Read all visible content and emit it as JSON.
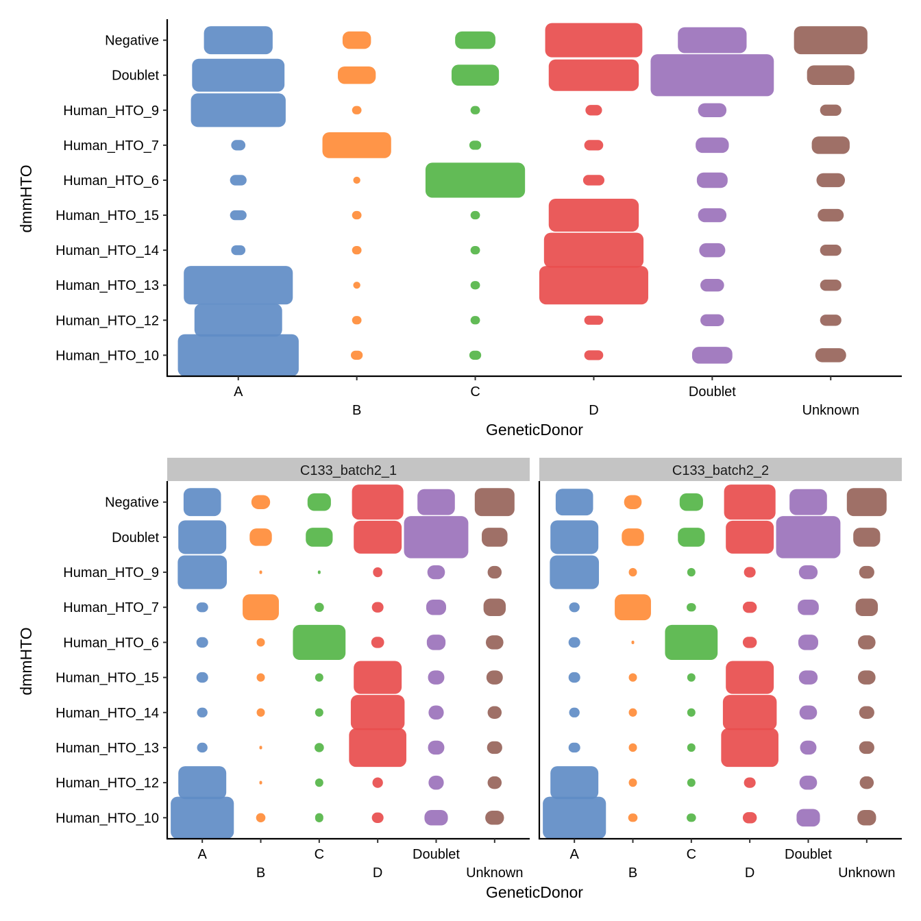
{
  "chart_data": [
    {
      "type": "scatter",
      "subtype": "jitter",
      "xlabel": "GeneticDonor",
      "ylabel": "dmmHTO",
      "x_categories": [
        "A",
        "B",
        "C",
        "D",
        "Doublet",
        "Unknown"
      ],
      "y_categories": [
        "Human_HTO_10",
        "Human_HTO_12",
        "Human_HTO_13",
        "Human_HTO_14",
        "Human_HTO_15",
        "Human_HTO_6",
        "Human_HTO_7",
        "Human_HTO_9",
        "Doublet",
        "Negative"
      ],
      "colors": {
        "A": "#5f8cc6",
        "B": "#ff8c38",
        "C": "#55b548",
        "D": "#e84d4d",
        "Doublet": "#9b72bb",
        "Unknown": "#97645a"
      },
      "note_spread": "cells: [x-spread, y-spread] of jittered point cloud per row (y_categories order) and column (x_categories order), in category units",
      "cells": [
        [
          [
            0.51,
            0.6
          ],
          [
            0.05,
            0.13
          ],
          [
            0.05,
            0.13
          ],
          [
            0.08,
            0.14
          ],
          [
            0.17,
            0.24
          ],
          [
            0.13,
            0.2
          ]
        ],
        [
          [
            0.37,
            0.47
          ],
          [
            0.04,
            0.12
          ],
          [
            0.04,
            0.12
          ],
          [
            0.08,
            0.13
          ],
          [
            0.1,
            0.17
          ],
          [
            0.09,
            0.16
          ]
        ],
        [
          [
            0.46,
            0.55
          ],
          [
            0.03,
            0.1
          ],
          [
            0.04,
            0.12
          ],
          [
            0.46,
            0.55
          ],
          [
            0.1,
            0.18
          ],
          [
            0.09,
            0.16
          ]
        ],
        [
          [
            0.06,
            0.14
          ],
          [
            0.04,
            0.12
          ],
          [
            0.04,
            0.12
          ],
          [
            0.42,
            0.5
          ],
          [
            0.11,
            0.2
          ],
          [
            0.09,
            0.16
          ]
        ],
        [
          [
            0.07,
            0.14
          ],
          [
            0.04,
            0.12
          ],
          [
            0.04,
            0.12
          ],
          [
            0.38,
            0.47
          ],
          [
            0.12,
            0.2
          ],
          [
            0.11,
            0.18
          ]
        ],
        [
          [
            0.07,
            0.15
          ],
          [
            0.03,
            0.1
          ],
          [
            0.42,
            0.5
          ],
          [
            0.09,
            0.15
          ],
          [
            0.13,
            0.22
          ],
          [
            0.12,
            0.2
          ]
        ],
        [
          [
            0.06,
            0.15
          ],
          [
            0.29,
            0.37
          ],
          [
            0.05,
            0.13
          ],
          [
            0.08,
            0.15
          ],
          [
            0.14,
            0.22
          ],
          [
            0.16,
            0.25
          ]
        ],
        [
          [
            0.4,
            0.48
          ],
          [
            0.04,
            0.12
          ],
          [
            0.04,
            0.12
          ],
          [
            0.07,
            0.15
          ],
          [
            0.12,
            0.2
          ],
          [
            0.09,
            0.16
          ]
        ],
        [
          [
            0.39,
            0.47
          ],
          [
            0.16,
            0.25
          ],
          [
            0.2,
            0.3
          ],
          [
            0.38,
            0.45
          ],
          [
            0.52,
            0.6
          ],
          [
            0.2,
            0.28
          ]
        ],
        [
          [
            0.29,
            0.4
          ],
          [
            0.12,
            0.25
          ],
          [
            0.17,
            0.25
          ],
          [
            0.41,
            0.49
          ],
          [
            0.29,
            0.37
          ],
          [
            0.31,
            0.4
          ]
        ]
      ]
    },
    {
      "type": "scatter",
      "subtype": "jitter-faceted",
      "xlabel": "GeneticDonor",
      "ylabel": "dmmHTO",
      "x_categories": [
        "A",
        "B",
        "C",
        "D",
        "Doublet",
        "Unknown"
      ],
      "y_categories": [
        "Human_HTO_10",
        "Human_HTO_12",
        "Human_HTO_13",
        "Human_HTO_14",
        "Human_HTO_15",
        "Human_HTO_6",
        "Human_HTO_7",
        "Human_HTO_9",
        "Doublet",
        "Negative"
      ],
      "facets": [
        {
          "label": "C133_batch2_1",
          "cells": [
            [
              [
                0.54,
                0.6
              ],
              [
                0.08,
                0.13
              ],
              [
                0.07,
                0.13
              ],
              [
                0.1,
                0.15
              ],
              [
                0.2,
                0.22
              ],
              [
                0.16,
                0.2
              ]
            ],
            [
              [
                0.41,
                0.47
              ],
              [
                0.02,
                0.05
              ],
              [
                0.07,
                0.12
              ],
              [
                0.09,
                0.15
              ],
              [
                0.13,
                0.2
              ],
              [
                0.12,
                0.18
              ]
            ],
            [
              [
                0.09,
                0.14
              ],
              [
                0.02,
                0.05
              ],
              [
                0.08,
                0.13
              ],
              [
                0.49,
                0.55
              ],
              [
                0.14,
                0.2
              ],
              [
                0.13,
                0.18
              ]
            ],
            [
              [
                0.09,
                0.14
              ],
              [
                0.07,
                0.12
              ],
              [
                0.07,
                0.12
              ],
              [
                0.46,
                0.5
              ],
              [
                0.13,
                0.2
              ],
              [
                0.12,
                0.18
              ]
            ],
            [
              [
                0.1,
                0.15
              ],
              [
                0.07,
                0.12
              ],
              [
                0.07,
                0.12
              ],
              [
                0.41,
                0.47
              ],
              [
                0.14,
                0.2
              ],
              [
                0.14,
                0.2
              ]
            ],
            [
              [
                0.1,
                0.15
              ],
              [
                0.07,
                0.12
              ],
              [
                0.45,
                0.5
              ],
              [
                0.11,
                0.16
              ],
              [
                0.16,
                0.22
              ],
              [
                0.15,
                0.2
              ]
            ],
            [
              [
                0.1,
                0.14
              ],
              [
                0.31,
                0.37
              ],
              [
                0.08,
                0.13
              ],
              [
                0.1,
                0.15
              ],
              [
                0.17,
                0.22
              ],
              [
                0.19,
                0.25
              ]
            ],
            [
              [
                0.42,
                0.48
              ],
              [
                0.02,
                0.05
              ],
              [
                0.02,
                0.05
              ],
              [
                0.08,
                0.14
              ],
              [
                0.15,
                0.2
              ],
              [
                0.12,
                0.18
              ]
            ],
            [
              [
                0.41,
                0.48
              ],
              [
                0.19,
                0.25
              ],
              [
                0.23,
                0.27
              ],
              [
                0.41,
                0.47
              ],
              [
                0.55,
                0.6
              ],
              [
                0.22,
                0.27
              ]
            ],
            [
              [
                0.32,
                0.4
              ],
              [
                0.16,
                0.2
              ],
              [
                0.2,
                0.25
              ],
              [
                0.44,
                0.5
              ],
              [
                0.32,
                0.37
              ],
              [
                0.34,
                0.4
              ]
            ]
          ]
        },
        {
          "label": "C133_batch2_2",
          "cells": [
            [
              [
                0.54,
                0.6
              ],
              [
                0.08,
                0.12
              ],
              [
                0.08,
                0.12
              ],
              [
                0.12,
                0.16
              ],
              [
                0.2,
                0.25
              ],
              [
                0.16,
                0.22
              ]
            ],
            [
              [
                0.41,
                0.47
              ],
              [
                0.07,
                0.12
              ],
              [
                0.07,
                0.12
              ],
              [
                0.1,
                0.15
              ],
              [
                0.15,
                0.2
              ],
              [
                0.12,
                0.18
              ]
            ],
            [
              [
                0.1,
                0.14
              ],
              [
                0.07,
                0.12
              ],
              [
                0.07,
                0.12
              ],
              [
                0.49,
                0.55
              ],
              [
                0.14,
                0.2
              ],
              [
                0.13,
                0.18
              ]
            ],
            [
              [
                0.09,
                0.14
              ],
              [
                0.07,
                0.12
              ],
              [
                0.07,
                0.12
              ],
              [
                0.46,
                0.5
              ],
              [
                0.15,
                0.2
              ],
              [
                0.13,
                0.18
              ]
            ],
            [
              [
                0.1,
                0.15
              ],
              [
                0.07,
                0.12
              ],
              [
                0.07,
                0.12
              ],
              [
                0.41,
                0.47
              ],
              [
                0.16,
                0.2
              ],
              [
                0.15,
                0.2
              ]
            ],
            [
              [
                0.1,
                0.15
              ],
              [
                0.02,
                0.05
              ],
              [
                0.45,
                0.5
              ],
              [
                0.12,
                0.16
              ],
              [
                0.17,
                0.22
              ],
              [
                0.15,
                0.2
              ]
            ],
            [
              [
                0.09,
                0.14
              ],
              [
                0.31,
                0.37
              ],
              [
                0.08,
                0.12
              ],
              [
                0.12,
                0.16
              ],
              [
                0.18,
                0.22
              ],
              [
                0.19,
                0.25
              ]
            ],
            [
              [
                0.42,
                0.48
              ],
              [
                0.07,
                0.12
              ],
              [
                0.07,
                0.12
              ],
              [
                0.1,
                0.15
              ],
              [
                0.16,
                0.2
              ],
              [
                0.13,
                0.18
              ]
            ],
            [
              [
                0.41,
                0.48
              ],
              [
                0.19,
                0.25
              ],
              [
                0.23,
                0.27
              ],
              [
                0.41,
                0.47
              ],
              [
                0.55,
                0.6
              ],
              [
                0.23,
                0.27
              ]
            ],
            [
              [
                0.32,
                0.38
              ],
              [
                0.15,
                0.2
              ],
              [
                0.2,
                0.25
              ],
              [
                0.44,
                0.5
              ],
              [
                0.32,
                0.37
              ],
              [
                0.34,
                0.4
              ]
            ]
          ]
        }
      ]
    }
  ]
}
